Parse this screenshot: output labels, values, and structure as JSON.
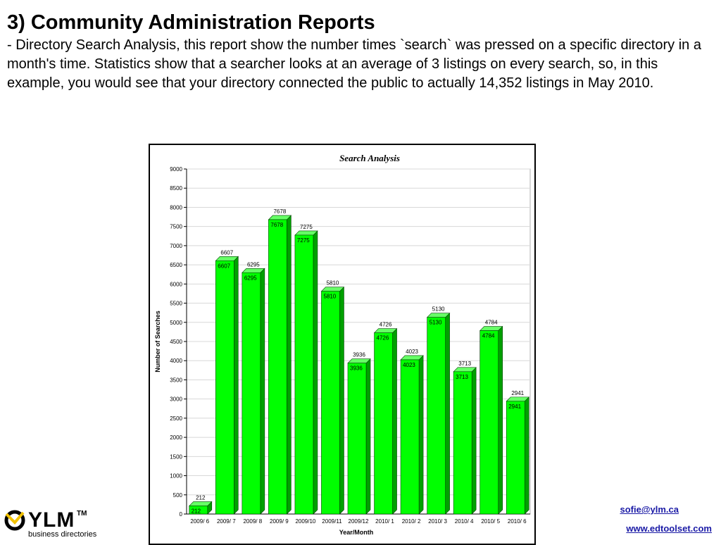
{
  "slide": {
    "title": "3) Community Administration Reports",
    "body": "- Directory Search Analysis, this report show the number times `search` was pressed on a specific directory in a month's time.  Statistics show that a searcher looks at an average of 3 listings on every search, so, in this example, you would see that your directory connected the public to actually 14,352 listings in May 2010."
  },
  "chart_data": {
    "type": "bar",
    "title": "Search Analysis",
    "xlabel": "Year/Month",
    "ylabel": "Number of Searches",
    "categories": [
      "2009/ 6",
      "2009/ 7",
      "2009/ 8",
      "2009/ 9",
      "2009/10",
      "2009/11",
      "2009/12",
      "2010/ 1",
      "2010/ 2",
      "2010/ 3",
      "2010/ 4",
      "2010/ 5",
      "2010/ 6"
    ],
    "values": [
      212,
      6607,
      6295,
      7678,
      7275,
      5810,
      3936,
      4726,
      4023,
      5130,
      3713,
      4784,
      2941
    ],
    "ylim": [
      0,
      9000
    ],
    "yticks": [
      0,
      500,
      1000,
      1500,
      2000,
      2500,
      3000,
      3500,
      4000,
      4500,
      5000,
      5500,
      6000,
      6500,
      7000,
      7500,
      8000,
      8500,
      9000
    ],
    "grid": true,
    "bar_color": "#00ff00"
  },
  "footer": {
    "logo_word": "YLM",
    "logo_tm": "TM",
    "logo_subtitle": "business directories",
    "email": "sofie@ylm.ca",
    "website": "www.edtoolset.com"
  }
}
